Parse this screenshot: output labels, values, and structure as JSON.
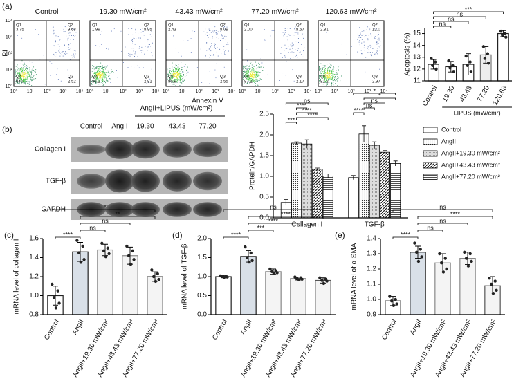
{
  "chart_data": [
    {
      "type": "bar",
      "panel_label": "(a)",
      "y_label": "Apoptosis (%)",
      "x_label": "LIPUS (mW/cm²)",
      "categories": [
        "Control",
        "19.30",
        "43.43",
        "77.20",
        "120.63"
      ],
      "values": [
        12.4,
        12.2,
        12.4,
        13.2,
        15.0
      ],
      "errors": [
        0.4,
        0.45,
        0.9,
        0.7,
        0.25
      ],
      "points": [
        [
          12.9,
          12.6,
          12.3,
          12.0
        ],
        [
          12.7,
          12.3,
          12.1,
          11.8
        ],
        [
          13.1,
          12.6,
          12.3,
          11.8
        ],
        [
          13.9,
          13.3,
          12.9,
          12.5
        ],
        [
          15.2,
          15.0,
          14.9,
          14.7
        ]
      ],
      "colors": [
        "#ffffff",
        "#ffffff",
        "#ffffff",
        "#eeeeee",
        "#ffffff"
      ],
      "edge_colors": [
        "#222222",
        "#222222",
        "#222222",
        "#777777",
        "#222222"
      ],
      "ylim": [
        11,
        15.5
      ],
      "yticks": [
        11,
        12,
        13,
        14,
        15
      ],
      "significance": [
        {
          "from": 0,
          "to": 1,
          "label": "ns"
        },
        {
          "from": 0,
          "to": 2,
          "label": "ns"
        },
        {
          "from": 0,
          "to": 3,
          "label": "ns"
        },
        {
          "from": 0,
          "to": 4,
          "label": "***"
        }
      ]
    },
    {
      "type": "bar",
      "panel_label": "(b)",
      "y_label": "Protein/GAPDH",
      "categories": [
        "Collagen I",
        "TGF-β"
      ],
      "series": [
        {
          "name": "Control",
          "color": "#000000",
          "pattern": "none",
          "values": [
            0.37,
            0.97
          ],
          "errors": [
            0.07,
            0.05
          ]
        },
        {
          "name": "AngII",
          "color": "#000000",
          "pattern": "dots",
          "values": [
            1.8,
            2.02
          ],
          "errors": [
            0.03,
            0.2
          ]
        },
        {
          "name": "AngII+19.30 mW/cm²",
          "color": "#000000",
          "pattern": "stipple",
          "values": [
            1.78,
            1.75
          ],
          "errors": [
            0.1,
            0.08
          ]
        },
        {
          "name": "AngII+43.43 mW/cm²",
          "color": "#000000",
          "pattern": "diag",
          "values": [
            1.17,
            1.58
          ],
          "errors": [
            0.03,
            0.04
          ]
        },
        {
          "name": "AngII+77.20 mW/cm²",
          "color": "#000000",
          "pattern": "horiz",
          "values": [
            1.01,
            1.31
          ],
          "errors": [
            0.05,
            0.06
          ]
        }
      ],
      "ylim": [
        0,
        2.5
      ],
      "yticks": [
        {
          "value": 0,
          "label": "0.0"
        },
        0.5,
        {
          "value": 1,
          "label": "1.0"
        },
        1.5,
        {
          "value": 2,
          "label": "2.0"
        },
        2.5
      ],
      "significance": [
        {
          "category": 0,
          "from": 0,
          "to": 1,
          "label": "***"
        },
        {
          "category": 0,
          "from": 1,
          "to": 4,
          "label": "****"
        },
        {
          "category": 0,
          "from": 1,
          "to": 3,
          "label": "****"
        },
        {
          "category": 0,
          "from": 1,
          "to": 2,
          "label": "****"
        },
        {
          "category": 0,
          "from": 0,
          "to": 4,
          "label": "ns"
        },
        {
          "category": 1,
          "from": 0,
          "to": 1,
          "label": "****"
        },
        {
          "category": 1,
          "from": 1,
          "to": 2,
          "label": "ns"
        },
        {
          "category": 1,
          "from": 1,
          "to": 3,
          "label": "ns"
        },
        {
          "category": 1,
          "from": 1,
          "to": 4,
          "label": "*"
        },
        {
          "category": 1,
          "from": 0,
          "to": 4,
          "label": "*"
        }
      ]
    },
    {
      "type": "bar",
      "panel_label": "(c)",
      "y_label": "mRNA level of collagen I",
      "categories": [
        "Control",
        "AngII",
        "AngII+19.30 mW/cm²",
        "AngII+43.43 mW/cm²",
        "AngII+77.20 mW/cm²"
      ],
      "values": [
        1.0,
        1.46,
        1.48,
        1.42,
        1.2
      ],
      "errors": [
        0.1,
        0.1,
        0.06,
        0.09,
        0.05
      ],
      "points": [
        [
          1.12,
          1.05,
          0.98,
          0.92,
          0.87
        ],
        [
          1.58,
          1.52,
          1.45,
          1.38,
          1.35
        ],
        [
          1.55,
          1.5,
          1.47,
          1.44,
          1.41
        ],
        [
          1.52,
          1.47,
          1.42,
          1.38,
          1.33
        ],
        [
          1.27,
          1.23,
          1.2,
          1.17,
          1.15
        ]
      ],
      "colors": [
        "#ffffff",
        "#d9e0e8",
        "#f4f4f4",
        "#f4f4f4",
        "#f4f4f4"
      ],
      "edge_colors": [
        "#222222",
        "#222222",
        "#888888",
        "#888888",
        "#555555"
      ],
      "ylim": [
        0.8,
        1.6
      ],
      "yticks": [
        0.8,
        {
          "value": 1,
          "label": "1.0"
        },
        1.2,
        1.4,
        1.6
      ],
      "significance": [
        {
          "from": 0,
          "to": 1,
          "label": "****"
        },
        {
          "from": 1,
          "to": 2,
          "label": "ns"
        },
        {
          "from": 1,
          "to": 3,
          "label": "ns"
        },
        {
          "from": 1,
          "to": 4,
          "label": "**"
        },
        {
          "from": 0,
          "to": 4,
          "label": "*"
        }
      ]
    },
    {
      "type": "bar",
      "panel_label": "(d)",
      "y_label": "mRNA level of TGF-β",
      "categories": [
        "Control",
        "AngII",
        "AngII+19.30 mW/cm²",
        "AngII+43.43 mW/cm²",
        "AngII+77.20 mW/cm²"
      ],
      "values": [
        1.0,
        1.53,
        1.13,
        0.95,
        0.9
      ],
      "errors": [
        0.03,
        0.15,
        0.07,
        0.04,
        0.07
      ],
      "points": [
        [
          1.02,
          1.01,
          1.0,
          0.99,
          0.98
        ],
        [
          1.78,
          1.62,
          1.5,
          1.42,
          1.38
        ],
        [
          1.2,
          1.15,
          1.13,
          1.1,
          1.08
        ],
        [
          0.99,
          0.97,
          0.95,
          0.93,
          0.92
        ],
        [
          0.97,
          0.93,
          0.9,
          0.88,
          0.82
        ]
      ],
      "colors": [
        "#ffffff",
        "#d9e0e8",
        "#f4f4f4",
        "#f4f4f4",
        "#f4f4f4"
      ],
      "edge_colors": [
        "#222222",
        "#222222",
        "#888888",
        "#888888",
        "#555555"
      ],
      "ylim": [
        0,
        2
      ],
      "yticks": [
        {
          "value": 0,
          "label": "0.0"
        },
        0.5,
        {
          "value": 1,
          "label": "1.0"
        },
        1.5,
        {
          "value": 2,
          "label": "2.0"
        }
      ],
      "significance": [
        {
          "from": 0,
          "to": 1,
          "label": "****"
        },
        {
          "from": 1,
          "to": 2,
          "label": "***"
        },
        {
          "from": 1,
          "to": 3,
          "label": "****"
        },
        {
          "from": 1,
          "to": 4,
          "label": "****"
        },
        {
          "from": 0,
          "to": 4,
          "label": "ns"
        }
      ]
    },
    {
      "type": "bar",
      "panel_label": "(e)",
      "y_label": "mRNA level of α-SMA",
      "categories": [
        "Control",
        "AngII",
        "AngII+19.30 mW/cm²",
        "AngII+43.43 mW/cm²",
        "AngII+77.20 mW/cm²"
      ],
      "values": [
        0.99,
        1.31,
        1.24,
        1.27,
        1.09
      ],
      "errors": [
        0.03,
        0.04,
        0.06,
        0.04,
        0.06
      ],
      "points": [
        [
          1.02,
          1.0,
          0.99,
          0.97,
          0.96
        ],
        [
          1.37,
          1.33,
          1.31,
          1.28,
          1.25
        ],
        [
          1.3,
          1.27,
          1.24,
          1.2,
          1.18
        ],
        [
          1.31,
          1.3,
          1.27,
          1.25,
          1.22
        ],
        [
          1.14,
          1.12,
          1.1,
          1.06,
          1.04
        ]
      ],
      "colors": [
        "#ffffff",
        "#d9e0e8",
        "#f4f4f4",
        "#f4f4f4",
        "#f4f4f4"
      ],
      "edge_colors": [
        "#222222",
        "#222222",
        "#888888",
        "#888888",
        "#555555"
      ],
      "ylim": [
        0.9,
        1.4
      ],
      "yticks": [
        0.9,
        {
          "value": 1,
          "label": "1.0"
        },
        1.1,
        1.2,
        1.3,
        1.4
      ],
      "significance": [
        {
          "from": 0,
          "to": 1,
          "label": "****"
        },
        {
          "from": 1,
          "to": 2,
          "label": "ns"
        },
        {
          "from": 1,
          "to": 3,
          "label": "ns"
        },
        {
          "from": 1,
          "to": 4,
          "label": "****"
        },
        {
          "from": 0,
          "to": 4,
          "label": "ns"
        }
      ]
    }
  ],
  "flow_cytometry": {
    "y_label": "PI",
    "x_label": "Annexin V",
    "tick_labels": [
      "10⁰",
      "10¹",
      "10²",
      "10³",
      "10⁴"
    ],
    "quadrants": [
      "Q1",
      "Q2",
      "Q3",
      "Q4"
    ],
    "plots": [
      {
        "title": "Control",
        "values": [
          "3.75",
          "9.68",
          "2.52",
          "84.0"
        ]
      },
      {
        "title": "19.30 mW/cm²",
        "values": [
          "1.99",
          "8.95",
          "2.81",
          "86.2"
        ]
      },
      {
        "title": "43.43 mW/cm²",
        "values": [
          "2.43",
          "8.09",
          "2.55",
          "86.9"
        ]
      },
      {
        "title": "77.20 mW/cm²",
        "values": [
          "2.00",
          "8.67",
          "2.17",
          "87.2"
        ]
      },
      {
        "title": "120.63 mW/cm²",
        "values": [
          "2.81",
          "12.0",
          "2.97",
          "82.2"
        ]
      }
    ]
  },
  "western_blot": {
    "columns": [
      "Control",
      "AngII"
    ],
    "group_label": "AngII+LIPUS (mW/cm²)",
    "group_columns": [
      "19.30",
      "43.43",
      "77.20"
    ],
    "rows": [
      "Collagen I",
      "TGF-β",
      "GAPDH"
    ]
  }
}
